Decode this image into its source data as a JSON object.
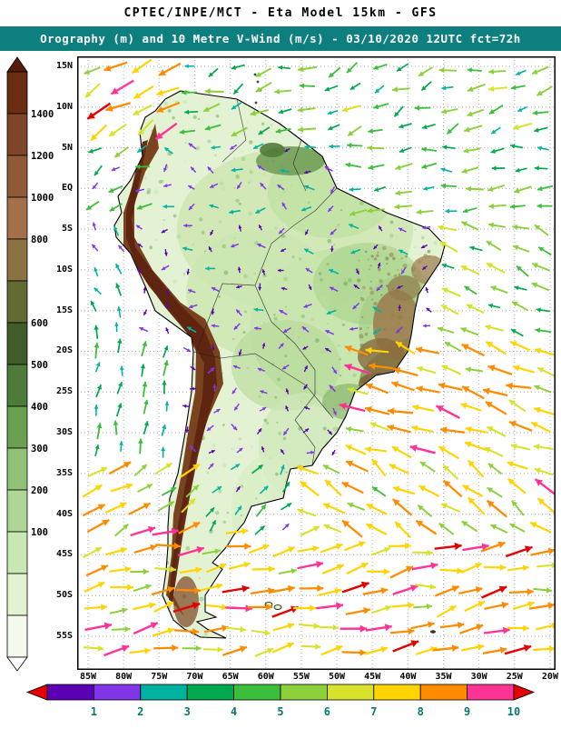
{
  "header": {
    "title": "CPTEC/INPE/MCT -  Eta Model 15km - GFS",
    "subtitle": "Orography (m) and 10 Metre V-Wind (m/s) - 03/10/2020 12UTC fct=72h",
    "subtitle_bg": "#0d7f7f"
  },
  "map": {
    "grid_color": "#b2b2b2",
    "coast_color": "#000000",
    "ocean_color": "#ffffff",
    "land_base_color": "#e3f2d3",
    "lat_ticks": [
      "15N",
      "10N",
      "5N",
      "EQ",
      "5S",
      "10S",
      "15S",
      "20S",
      "25S",
      "30S",
      "35S",
      "40S",
      "45S",
      "50S",
      "55S"
    ],
    "lon_ticks": [
      "85W",
      "80W",
      "75W",
      "70W",
      "65W",
      "60W",
      "55W",
      "50W",
      "45W",
      "40W",
      "35W",
      "30W",
      "25W",
      "20W"
    ]
  },
  "colorbar_left": {
    "arrow_top_color": "#571c0a",
    "arrow_bottom_color": "#ffffff",
    "segments": [
      {
        "color": "#6b2d12",
        "label": ""
      },
      {
        "color": "#7e4526",
        "label": "1400"
      },
      {
        "color": "#8f5a36",
        "label": "1200"
      },
      {
        "color": "#a3704a",
        "label": "1000"
      },
      {
        "color": "#8a7243",
        "label": "800"
      },
      {
        "color": "#636a32",
        "label": ""
      },
      {
        "color": "#3f5c2a",
        "label": "600"
      },
      {
        "color": "#4d7c3a",
        "label": "500"
      },
      {
        "color": "#69a052",
        "label": "400"
      },
      {
        "color": "#8fc276",
        "label": "300"
      },
      {
        "color": "#aed796",
        "label": "200"
      },
      {
        "color": "#c8e7b2",
        "label": "100"
      },
      {
        "color": "#e2f3d2",
        "label": ""
      },
      {
        "color": "#f3faec",
        "label": ""
      }
    ]
  },
  "colorbar_bottom": {
    "arrow_color": "#e40000",
    "labels": [
      "1",
      "2",
      "3",
      "4",
      "5",
      "6",
      "7",
      "8",
      "9",
      "10"
    ],
    "segment_colors": [
      "#5c00b4",
      "#8136e8",
      "#00b2a0",
      "#00a84e",
      "#3cbe3c",
      "#8cd03c",
      "#d8e22a",
      "#ffd400",
      "#ff8c00",
      "#ff3296"
    ],
    "label_color": "#067a6e"
  },
  "chart_data": {
    "type": "map",
    "map_type": "meteorological model output chart",
    "region": "South America",
    "institution": "CPTEC/INPE/MCT",
    "model": "Eta Model 15km",
    "driving_model": "GFS",
    "fields": [
      "Orography (m)",
      "10 Metre V-Wind (m/s)"
    ],
    "valid_date": "03/10/2020 12UTC",
    "forecast": "fct=72h",
    "lat_range": [
      "15N",
      "55S"
    ],
    "lon_range": [
      "85W",
      "20W"
    ],
    "grid_interval_deg": 5,
    "grid_style": "dotted",
    "orography_scale": {
      "unit": "m",
      "levels": [
        100,
        200,
        300,
        400,
        500,
        600,
        800,
        1000,
        1200,
        1400
      ],
      "colors_low_to_high": [
        "#f3faec",
        "#e2f3d2",
        "#c8e7b2",
        "#aed796",
        "#8fc276",
        "#69a052",
        "#4d7c3a",
        "#3f5c2a",
        "#636a32",
        "#8a7243",
        "#a3704a",
        "#8f5a36",
        "#7e4526",
        "#6b2d12"
      ]
    },
    "wind_scale": {
      "unit": "m/s",
      "levels": [
        1,
        2,
        3,
        4,
        5,
        6,
        7,
        8,
        9,
        10
      ],
      "colors": [
        "#5c00b4",
        "#8136e8",
        "#00b2a0",
        "#00a84e",
        "#3cbe3c",
        "#8cd03c",
        "#d8e22a",
        "#ffd400",
        "#ff8c00",
        "#ff3296"
      ],
      "over_range_color": "#e40000"
    }
  }
}
